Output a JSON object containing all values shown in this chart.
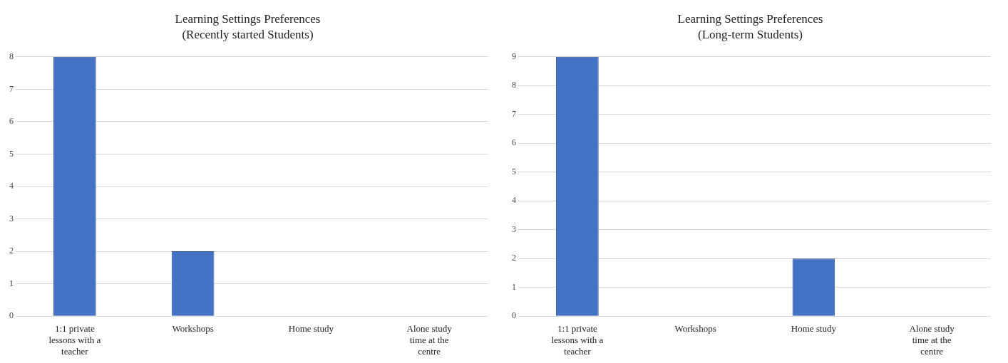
{
  "chart_data": [
    {
      "type": "bar",
      "title": "Learning Settings Preferences",
      "subtitle": "(Recently started Students)",
      "categories": [
        "1:1 private lessons with a teacher",
        "Workshops",
        "Home study",
        "Alone study time at the centre"
      ],
      "values": [
        8,
        2,
        0,
        0
      ],
      "color": "#4472c4",
      "ylim": [
        0,
        8
      ],
      "yticks": [
        0,
        1,
        2,
        3,
        4,
        5,
        6,
        7,
        8
      ],
      "grid": "y",
      "legend": false
    },
    {
      "type": "bar",
      "title": "Learning Settings Preferences",
      "subtitle": "(Long-term Students)",
      "categories": [
        "1:1 private lessons with a teacher",
        "Workshops",
        "Home study",
        "Alone study time at the centre"
      ],
      "values": [
        9,
        0,
        2,
        0
      ],
      "color": "#4472c4",
      "ylim": [
        0,
        9
      ],
      "yticks": [
        0,
        1,
        2,
        3,
        4,
        5,
        6,
        7,
        8,
        9
      ],
      "grid": "y",
      "legend": false
    }
  ]
}
